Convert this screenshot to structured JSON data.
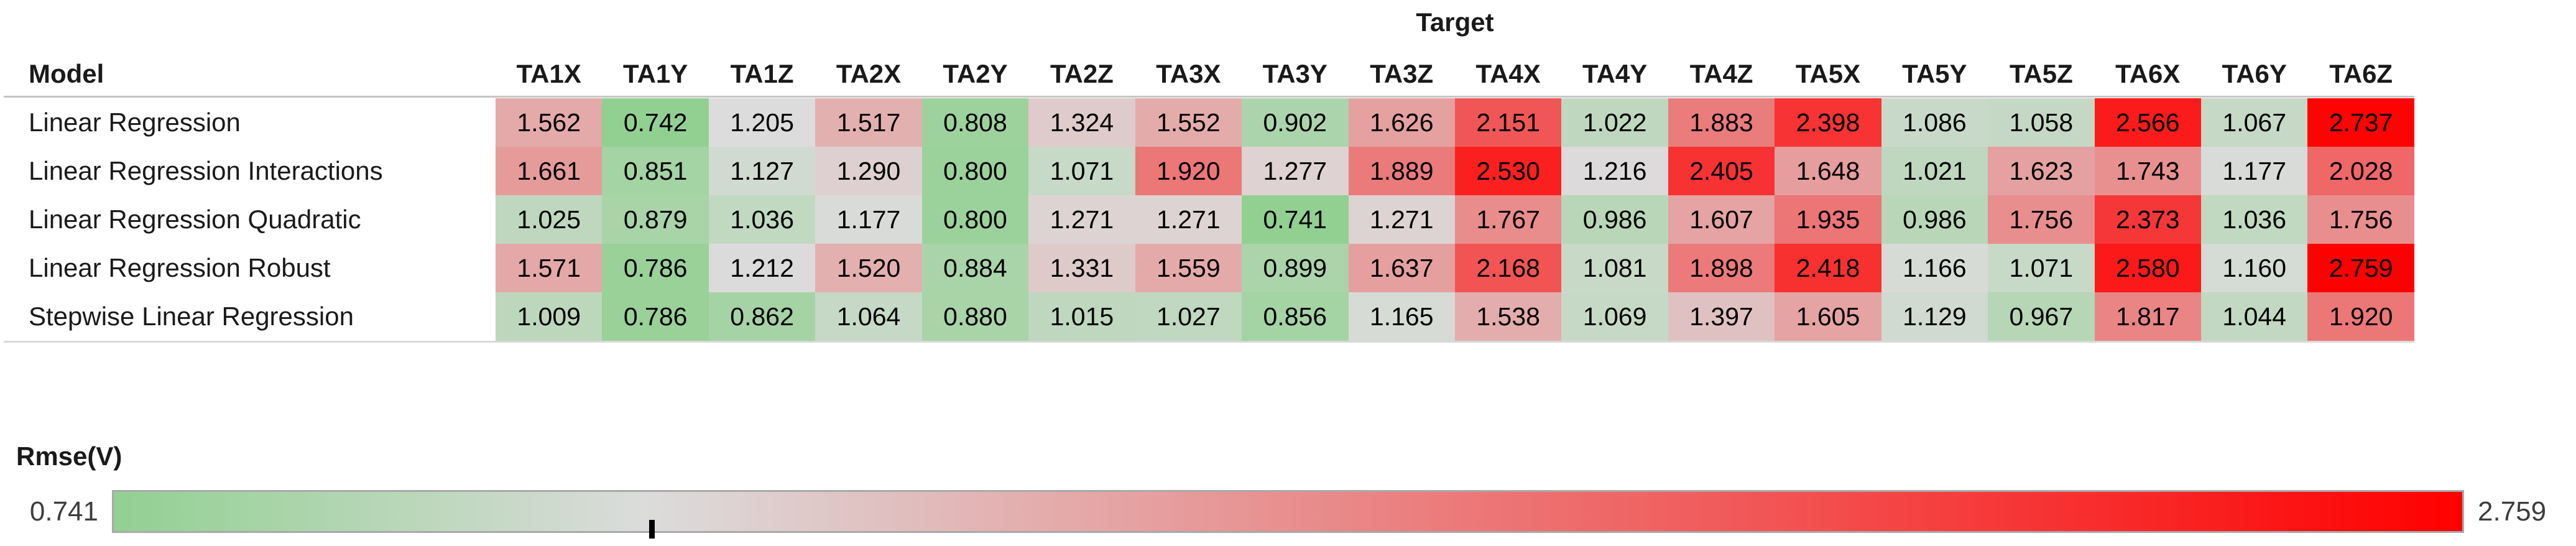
{
  "chart_data": {
    "type": "heatmap",
    "title": "Target",
    "row_header": "Model",
    "columns": [
      "TA1X",
      "TA1Y",
      "TA1Z",
      "TA2X",
      "TA2Y",
      "TA2Z",
      "TA3X",
      "TA3Y",
      "TA3Z",
      "TA4X",
      "TA4Y",
      "TA4Z",
      "TA5X",
      "TA5Y",
      "TA5Z",
      "TA6X",
      "TA6Y",
      "TA6Z"
    ],
    "rows": [
      {
        "model": "Linear Regression",
        "values": [
          "1.562",
          "0.742",
          "1.205",
          "1.517",
          "0.808",
          "1.324",
          "1.552",
          "0.902",
          "1.626",
          "2.151",
          "1.022",
          "1.883",
          "2.398",
          "1.086",
          "1.058",
          "2.566",
          "1.067",
          "2.737"
        ]
      },
      {
        "model": "Linear Regression Interactions",
        "values": [
          "1.661",
          "0.851",
          "1.127",
          "1.290",
          "0.800",
          "1.071",
          "1.920",
          "1.277",
          "1.889",
          "2.530",
          "1.216",
          "2.405",
          "1.648",
          "1.021",
          "1.623",
          "1.743",
          "1.177",
          "2.028"
        ]
      },
      {
        "model": "Linear Regression Quadratic",
        "values": [
          "1.025",
          "0.879",
          "1.036",
          "1.177",
          "0.800",
          "1.271",
          "1.271",
          "0.741",
          "1.271",
          "1.767",
          "0.986",
          "1.607",
          "1.935",
          "0.986",
          "1.756",
          "2.373",
          "1.036",
          "1.756"
        ]
      },
      {
        "model": "Linear Regression Robust",
        "values": [
          "1.571",
          "0.786",
          "1.212",
          "1.520",
          "0.884",
          "1.331",
          "1.559",
          "0.899",
          "1.637",
          "2.168",
          "1.081",
          "1.898",
          "2.418",
          "1.166",
          "1.071",
          "2.580",
          "1.160",
          "2.759"
        ]
      },
      {
        "model": "Stepwise Linear Regression",
        "values": [
          "1.009",
          "0.786",
          "0.862",
          "1.064",
          "0.880",
          "1.015",
          "1.027",
          "0.856",
          "1.165",
          "1.538",
          "1.069",
          "1.397",
          "1.605",
          "1.129",
          "0.967",
          "1.817",
          "1.044",
          "1.920"
        ]
      }
    ],
    "legend": {
      "label": "Rmse(V)",
      "min_label": "0.741",
      "max_label": "2.759",
      "tick_value": 1.204
    },
    "colormap": {
      "min": 0.741,
      "pivot": 1.204,
      "max": 2.759,
      "green": "#92D092",
      "gray": "#DCDCDC",
      "red": "#FF0000"
    }
  }
}
